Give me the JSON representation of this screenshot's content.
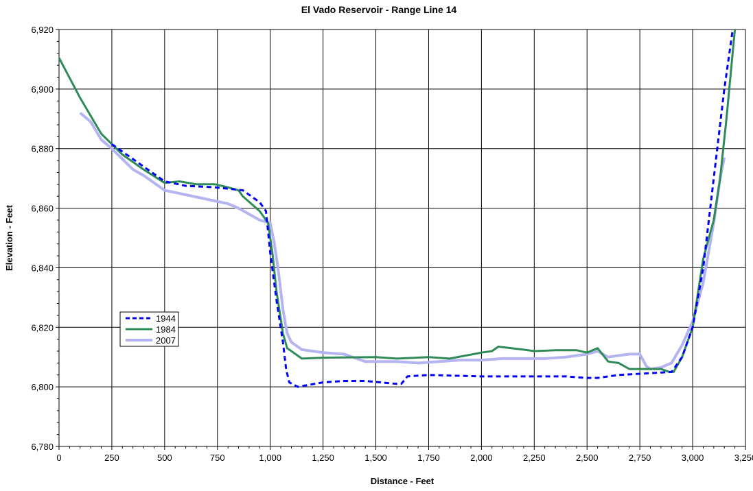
{
  "chart_data": {
    "type": "line",
    "title": "El Vado Reservoir - Range Line 14",
    "xlabel": "Distance - Feet",
    "ylabel": "Elevation - Feet",
    "xlim": [
      0,
      3250
    ],
    "ylim": [
      6780,
      6920
    ],
    "x_ticks": [
      0,
      250,
      500,
      750,
      1000,
      1250,
      1500,
      1750,
      2000,
      2250,
      2500,
      2750,
      3000,
      3250
    ],
    "x_tick_labels": [
      "0",
      "250",
      "500",
      "750",
      "1,000",
      "1,250",
      "1,500",
      "1,750",
      "2,000",
      "2,250",
      "2,500",
      "2,750",
      "3,000",
      "3,250"
    ],
    "y_ticks": [
      6780,
      6800,
      6820,
      6840,
      6860,
      6880,
      6900,
      6920
    ],
    "y_tick_labels": [
      "6,780",
      "6,800",
      "6,820",
      "6,840",
      "6,860",
      "6,880",
      "6,900",
      "6,920"
    ],
    "grid": true,
    "legend_position": "left-middle",
    "series": [
      {
        "name": "1944",
        "color": "#0000ff",
        "style": "dashed",
        "points": [
          [
            250,
            6881.5
          ],
          [
            500,
            6869
          ],
          [
            600,
            6867.5
          ],
          [
            740,
            6867
          ],
          [
            870,
            6866
          ],
          [
            950,
            6862
          ],
          [
            980,
            6859
          ],
          [
            1000,
            6845
          ],
          [
            1030,
            6829
          ],
          [
            1060,
            6815
          ],
          [
            1075,
            6806
          ],
          [
            1090,
            6801.5
          ],
          [
            1130,
            6800
          ],
          [
            1250,
            6801.5
          ],
          [
            1350,
            6802
          ],
          [
            1450,
            6802
          ],
          [
            1600,
            6801
          ],
          [
            1620,
            6801
          ],
          [
            1650,
            6803.5
          ],
          [
            1750,
            6804
          ],
          [
            2000,
            6803.5
          ],
          [
            2400,
            6803.5
          ],
          [
            2500,
            6803
          ],
          [
            2550,
            6803
          ],
          [
            2650,
            6804
          ],
          [
            2900,
            6805
          ],
          [
            2950,
            6810
          ],
          [
            3000,
            6820
          ],
          [
            3050,
            6840
          ],
          [
            3100,
            6870
          ],
          [
            3150,
            6900
          ],
          [
            3190,
            6920
          ]
        ]
      },
      {
        "name": "1984",
        "color": "#2e8b57",
        "style": "solid",
        "points": [
          [
            0,
            6910.5
          ],
          [
            100,
            6897
          ],
          [
            200,
            6885
          ],
          [
            300,
            6878
          ],
          [
            400,
            6873
          ],
          [
            500,
            6868.5
          ],
          [
            570,
            6869
          ],
          [
            650,
            6868
          ],
          [
            740,
            6868
          ],
          [
            800,
            6867
          ],
          [
            850,
            6866
          ],
          [
            870,
            6864
          ],
          [
            950,
            6859
          ],
          [
            990,
            6855
          ],
          [
            1010,
            6845
          ],
          [
            1030,
            6832
          ],
          [
            1060,
            6818
          ],
          [
            1080,
            6813
          ],
          [
            1150,
            6809.5
          ],
          [
            1250,
            6809.8
          ],
          [
            1500,
            6810
          ],
          [
            1600,
            6809.5
          ],
          [
            1750,
            6810
          ],
          [
            1850,
            6809.5
          ],
          [
            2000,
            6811.5
          ],
          [
            2050,
            6812
          ],
          [
            2080,
            6813.5
          ],
          [
            2200,
            6812.5
          ],
          [
            2250,
            6812
          ],
          [
            2350,
            6812.3
          ],
          [
            2450,
            6812.3
          ],
          [
            2500,
            6811.5
          ],
          [
            2550,
            6813
          ],
          [
            2600,
            6808.5
          ],
          [
            2650,
            6808
          ],
          [
            2700,
            6806
          ],
          [
            2800,
            6806
          ],
          [
            2850,
            6806
          ],
          [
            2890,
            6805
          ],
          [
            2910,
            6805
          ],
          [
            2950,
            6810
          ],
          [
            3000,
            6820
          ],
          [
            3050,
            6843
          ],
          [
            3100,
            6856
          ],
          [
            3130,
            6870
          ],
          [
            3160,
            6890
          ],
          [
            3200,
            6920
          ]
        ]
      },
      {
        "name": "2007",
        "color": "#b4b4f0",
        "style": "solid",
        "points": [
          [
            100,
            6892
          ],
          [
            150,
            6889
          ],
          [
            200,
            6883
          ],
          [
            250,
            6880
          ],
          [
            300,
            6876.5
          ],
          [
            350,
            6873
          ],
          [
            400,
            6871
          ],
          [
            500,
            6866
          ],
          [
            600,
            6864.5
          ],
          [
            700,
            6863
          ],
          [
            800,
            6861.5
          ],
          [
            850,
            6860
          ],
          [
            900,
            6858
          ],
          [
            950,
            6856
          ],
          [
            1000,
            6855
          ],
          [
            1020,
            6848
          ],
          [
            1040,
            6838
          ],
          [
            1060,
            6826
          ],
          [
            1080,
            6818
          ],
          [
            1100,
            6815
          ],
          [
            1150,
            6812.5
          ],
          [
            1250,
            6811.5
          ],
          [
            1350,
            6811
          ],
          [
            1450,
            6808.5
          ],
          [
            1500,
            6808.5
          ],
          [
            1600,
            6808.5
          ],
          [
            1700,
            6808
          ],
          [
            1800,
            6808.5
          ],
          [
            1900,
            6809
          ],
          [
            2000,
            6809
          ],
          [
            2100,
            6809.5
          ],
          [
            2200,
            6809.5
          ],
          [
            2300,
            6809.5
          ],
          [
            2400,
            6810
          ],
          [
            2500,
            6811
          ],
          [
            2550,
            6812
          ],
          [
            2600,
            6810
          ],
          [
            2650,
            6810.5
          ],
          [
            2700,
            6811
          ],
          [
            2750,
            6811
          ],
          [
            2780,
            6807
          ],
          [
            2800,
            6806
          ],
          [
            2850,
            6806.5
          ],
          [
            2900,
            6808
          ],
          [
            2950,
            6814
          ],
          [
            3000,
            6822
          ],
          [
            3050,
            6835
          ],
          [
            3100,
            6855
          ],
          [
            3130,
            6870
          ],
          [
            3150,
            6877
          ]
        ]
      }
    ]
  }
}
